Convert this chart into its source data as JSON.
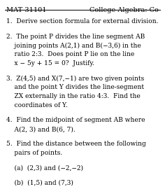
{
  "header_left": "MAT 31101",
  "header_right": "College Algebra: Co",
  "bg_color": "#ffffff",
  "text_color": "#000000",
  "header_fontsize": 7.0,
  "body_fontsize": 6.5,
  "line1": "1.  Derive section formula for external division.",
  "line2a": "2.  The point P divides the line segment AB",
  "line2b": "    joining points A(2,1) and B(−3,6) in the",
  "line2c": "    ratio 2:3.  Does point P lie on the line",
  "line2d": "    x − 5y + 15 = 0?  Justify.",
  "line3a": "3.  Z(4,5) and X(7,−1) are two given points",
  "line3b": "    and the point Y divides the line-segment",
  "line3c": "    ZX externally in the ratio 4:3.  Find the",
  "line3d": "    coordinates of Y.",
  "line4a": "4.  Find the midpoint of segment AB where",
  "line4b": "    A(2, 3) and B(6, 7).",
  "line5a": "5.  Find the distance between the following",
  "line5b": "    pairs of points.",
  "line5c": "    (a)  (2,3) and (−2,−2)",
  "line5d": "    (b)  (1,5) and (7,3)"
}
